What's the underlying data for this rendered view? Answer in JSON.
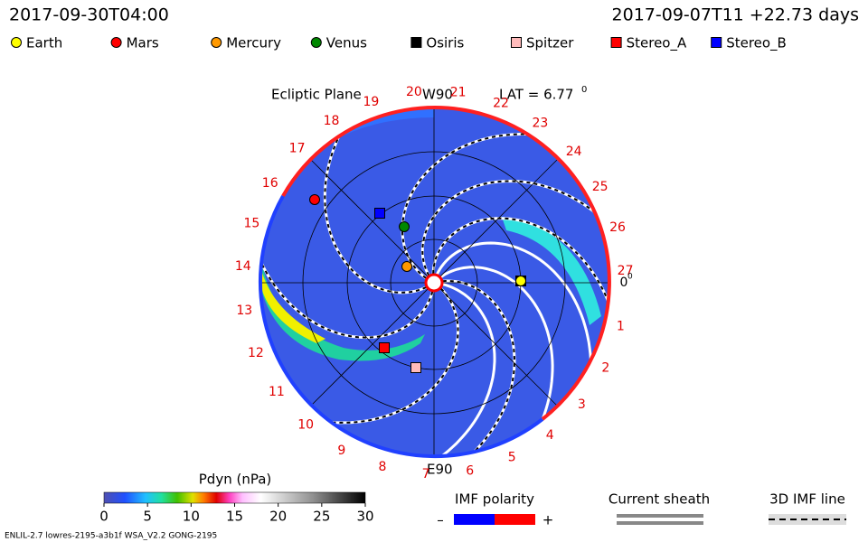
{
  "header": {
    "time": "2017-09-30T04:00",
    "run_info": "2017-09-07T11 +22.73 days"
  },
  "legend": [
    {
      "name": "Earth",
      "color": "#ffff00",
      "shape": "circle"
    },
    {
      "name": "Mars",
      "color": "#ff0000",
      "shape": "circle"
    },
    {
      "name": "Mercury",
      "color": "#ff9900",
      "shape": "circle"
    },
    {
      "name": "Venus",
      "color": "#008800",
      "shape": "circle"
    },
    {
      "name": "Osiris",
      "color": "#000000",
      "shape": "square"
    },
    {
      "name": "Spitzer",
      "color": "#ffbbbb",
      "shape": "square"
    },
    {
      "name": "Stereo_A",
      "color": "#ff0000",
      "shape": "square"
    },
    {
      "name": "Stereo_B",
      "color": "#0000ff",
      "shape": "square"
    }
  ],
  "plot": {
    "title": "Ecliptic Plane",
    "top_label": "W90",
    "bottom_label": "E90",
    "lat_label": "LAT = 6.77",
    "lat_unit": "0",
    "sectors": [
      0,
      1,
      2,
      3,
      4,
      5,
      6,
      7,
      8,
      9,
      10,
      11,
      12,
      13,
      14,
      15,
      16,
      17,
      18,
      19,
      20,
      21,
      22,
      23,
      24,
      25,
      26,
      27
    ],
    "zero_unit": "0"
  },
  "colorbar": {
    "title": "Pdyn (nPa)",
    "lim": [
      0,
      30
    ],
    "ticks": [
      0,
      5,
      10,
      15,
      20,
      25,
      30
    ]
  },
  "key": {
    "imf_title": "IMF polarity",
    "minus": "–",
    "plus": "+",
    "sheath_title": "Current sheath",
    "imf_line_title": "3D IMF line"
  },
  "footer": {
    "left": "ENLIL-2.7 lowres-2195-a3b1f WSA_V2.2 GONG-2195"
  }
}
